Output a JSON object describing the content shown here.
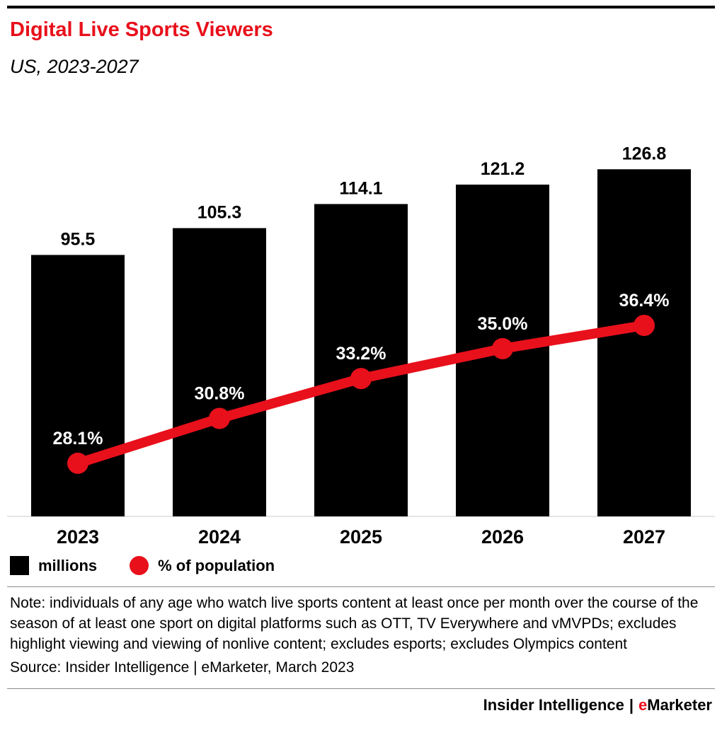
{
  "header": {
    "title": "Digital Live Sports Viewers",
    "subtitle": "US, 2023-2027"
  },
  "chart_data": {
    "type": "bar",
    "title": "Digital Live Sports Viewers",
    "subtitle": "US, 2023-2027",
    "categories": [
      "2023",
      "2024",
      "2025",
      "2026",
      "2027"
    ],
    "series": [
      {
        "name": "millions",
        "type": "bar",
        "color": "#000000",
        "values": [
          95.5,
          105.3,
          114.1,
          121.2,
          126.8
        ],
        "labels": [
          "95.5",
          "105.3",
          "114.1",
          "121.2",
          "126.8"
        ]
      },
      {
        "name": "% of population",
        "type": "line",
        "color": "#e8101b",
        "values": [
          28.1,
          30.8,
          33.2,
          35.0,
          36.4
        ],
        "labels": [
          "28.1%",
          "30.8%",
          "33.2%",
          "35.0%",
          "36.4%"
        ]
      }
    ],
    "xlabel": "",
    "ylabel": "",
    "grid": false,
    "legend_position": "bottom"
  },
  "legend": {
    "items": [
      {
        "label": "millions",
        "swatch": "square",
        "color": "#000000"
      },
      {
        "label": "% of population",
        "swatch": "circle",
        "color": "#e8101b"
      }
    ]
  },
  "note": "Note: individuals of any age who watch live sports content at least once per month over the course of the season of at least one sport on digital platforms such as OTT, TV Everywhere and vMVPDs; excludes highlight viewing and viewing of nonlive content; excludes esports; excludes Olympics content",
  "source": "Source: Insider Intelligence | eMarketer, March 2023",
  "footer": {
    "left": "Insider Intelligence",
    "separator": "|",
    "brand_e": "e",
    "brand_rest": "Marketer"
  },
  "colors": {
    "accent": "#e8101b",
    "bar": "#000000",
    "background": "#ffffff"
  }
}
